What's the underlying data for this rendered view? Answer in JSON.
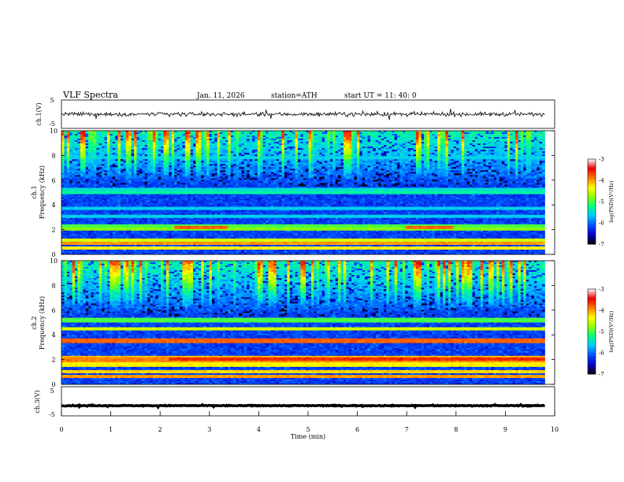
{
  "header": {
    "title": "VLF  Spectra",
    "date": "Jan. 11, 2026",
    "station": "station=ATH",
    "start": "start  UT  =   11: 40: 0"
  },
  "colors": {
    "colormap": [
      "#000000",
      "#0000c8",
      "#0050ff",
      "#00c8ff",
      "#00ff8c",
      "#8cff00",
      "#ffff00",
      "#ff7800",
      "#e60000",
      "#ffffff"
    ],
    "background": "#ffffff",
    "ink": "#000000"
  },
  "chart_data": [
    {
      "type": "line",
      "name": "ch1-waveform",
      "ylabel": "ch.1(V)",
      "ylim": [
        -5,
        5
      ],
      "yticks": [
        "5",
        "-5"
      ],
      "xlim": [
        0,
        10
      ],
      "data_extent_min": 9.8,
      "approx_level": 0,
      "approx_amplitude": 1.2
    },
    {
      "type": "heatmap",
      "name": "ch1-spectrogram",
      "ylabel_top": "ch.1",
      "ylabel": "Frequency  (kHz)",
      "ylim": [
        0,
        10
      ],
      "yticks": [
        "0",
        "2",
        "4",
        "6",
        "8",
        "10"
      ],
      "xlim": [
        0,
        10
      ],
      "data_extent_min": 9.8,
      "colorbar": {
        "label": "log(PSD)(V²/Hz)",
        "range": [
          -7,
          -3
        ],
        "ticks": [
          "-7",
          "-6",
          "-5",
          "-4",
          "-3"
        ]
      },
      "bands": [
        {
          "freq_khz": 0.15,
          "level": -7.0,
          "width_khz": 0.3
        },
        {
          "freq_khz": 0.55,
          "level": -4.3,
          "width_khz": 0.06
        },
        {
          "freq_khz": 0.85,
          "level": -4.0,
          "width_khz": 0.06
        },
        {
          "freq_khz": 1.15,
          "level": -4.5,
          "width_khz": 0.06
        },
        {
          "freq_khz": 2.05,
          "level": -4.8,
          "width_khz": 0.12
        },
        {
          "freq_khz": 2.3,
          "level": -5.0,
          "width_khz": 0.08
        },
        {
          "freq_khz": 3.1,
          "level": -5.6,
          "width_khz": 0.05
        },
        {
          "freq_khz": 3.7,
          "level": -5.6,
          "width_khz": 0.05
        },
        {
          "freq_khz": 5.0,
          "level": -5.3,
          "width_khz": 0.05
        },
        {
          "freq_khz": 5.3,
          "level": -5.5,
          "width_khz": 0.05
        },
        {
          "freq_khz": 7.8,
          "level": -5.6,
          "width_khz": 0.05
        }
      ],
      "events": [
        {
          "t_start_min": 2.3,
          "t_end_min": 3.4,
          "freq_khz": 2.2,
          "level": -3.8
        },
        {
          "t_start_min": 6.95,
          "t_end_min": 7.95,
          "freq_khz": 2.2,
          "level": -3.8
        }
      ]
    },
    {
      "type": "heatmap",
      "name": "ch2-spectrogram",
      "ylabel_top": "ch.2",
      "ylabel": "Frequency  (kHz)",
      "ylim": [
        0,
        10
      ],
      "yticks": [
        "0",
        "2",
        "4",
        "6",
        "8",
        "10"
      ],
      "xlim": [
        0,
        10
      ],
      "data_extent_min": 9.8,
      "colorbar": {
        "label": "log(PSD)(V²/Hz)",
        "range": [
          -7,
          -3
        ],
        "ticks": [
          "-7",
          "-6",
          "-5",
          "-4",
          "-3"
        ]
      },
      "bands": [
        {
          "freq_khz": 0.1,
          "level": -7.0,
          "width_khz": 0.2
        },
        {
          "freq_khz": 0.6,
          "level": -4.0,
          "width_khz": 0.08
        },
        {
          "freq_khz": 1.0,
          "level": -4.2,
          "width_khz": 0.08
        },
        {
          "freq_khz": 1.6,
          "level": -4.3,
          "width_khz": 0.08
        },
        {
          "freq_khz": 2.0,
          "level": -3.9,
          "width_khz": 0.1
        },
        {
          "freq_khz": 2.2,
          "level": -4.1,
          "width_khz": 0.1
        },
        {
          "freq_khz": 3.5,
          "level": -3.8,
          "width_khz": 0.15
        },
        {
          "freq_khz": 4.5,
          "level": -4.5,
          "width_khz": 0.1
        },
        {
          "freq_khz": 5.2,
          "level": -5.0,
          "width_khz": 0.08
        }
      ],
      "events": [
        {
          "t_start_min": 2.2,
          "t_end_min": 9.8,
          "freq_khz": 2.1,
          "level": -3.6
        }
      ]
    },
    {
      "type": "line",
      "name": "ch3-waveform",
      "ylabel": "ch.3(V)",
      "ylim": [
        -5,
        5
      ],
      "yticks": [
        "5",
        "-5"
      ],
      "xlim": [
        0,
        10
      ],
      "data_extent_min": 9.8,
      "approx_level": -1.5,
      "approx_amplitude": 0.25
    }
  ],
  "xaxis": {
    "label": "Time  (min)",
    "ticks": [
      "0",
      "1",
      "2",
      "3",
      "4",
      "5",
      "6",
      "7",
      "8",
      "9",
      "10"
    ],
    "range": [
      0,
      10
    ]
  }
}
